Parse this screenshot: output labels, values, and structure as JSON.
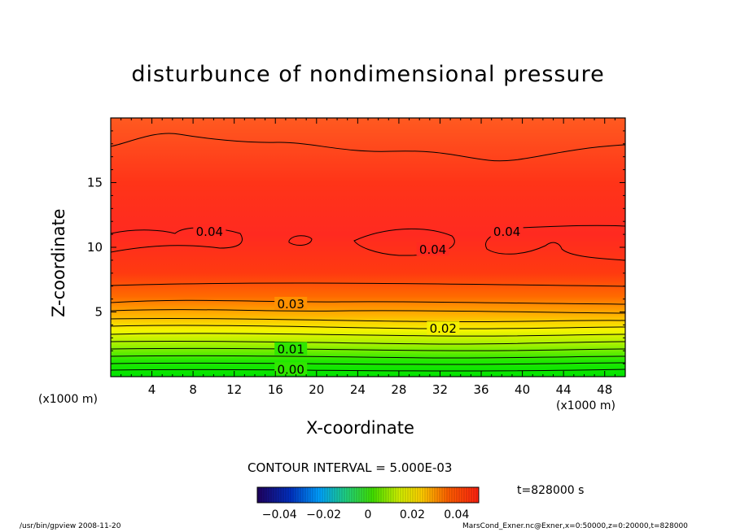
{
  "chart_data": {
    "type": "heatmap",
    "title": "disturbunce of nondimensional pressure",
    "xlabel": "X-coordinate",
    "ylabel": "Z-coordinate",
    "x_unit": "(x1000 m)",
    "xlim": [
      0,
      50
    ],
    "ylim": [
      0,
      20
    ],
    "x_ticks": [
      4,
      8,
      12,
      16,
      20,
      24,
      28,
      32,
      36,
      40,
      44,
      48
    ],
    "y_ticks": [
      5,
      10,
      15
    ],
    "contour_interval_text": "CONTOUR INTERVAL = 5.000E-03",
    "contour_labels": [
      {
        "text": "0.04",
        "x": 9.6,
        "z": 11.2
      },
      {
        "text": "0.04",
        "x": 31.3,
        "z": 9.8
      },
      {
        "text": "0.04",
        "x": 38.5,
        "z": 11.2
      },
      {
        "text": "0.03",
        "x": 17.5,
        "z": 5.6
      },
      {
        "text": "0.02",
        "x": 32.3,
        "z": 3.7
      },
      {
        "text": "0.01",
        "x": 17.5,
        "z": 2.1
      },
      {
        "text": "0.00",
        "x": 17.5,
        "z": 0.55
      }
    ],
    "colorbar": {
      "range": [
        -0.05,
        0.05
      ],
      "tick_labels": [
        {
          "text": "−0.04",
          "value": -0.04
        },
        {
          "text": "−0.02",
          "value": -0.02
        },
        {
          "text": "0",
          "value": 0
        },
        {
          "text": "0.02",
          "value": 0.02
        },
        {
          "text": "0.04",
          "value": 0.04
        }
      ]
    },
    "time_label": "t=828000 s"
  },
  "footer": {
    "left": "/usr/bin/gpview   2008-11-20",
    "right": "MarsCond_Exner.nc@Exner,x=0:50000,z=0:20000,t=828000"
  },
  "colors": {
    "low": "#00e000",
    "mid": "#ffff00",
    "high": "#ff2020",
    "frame": "#000000"
  }
}
